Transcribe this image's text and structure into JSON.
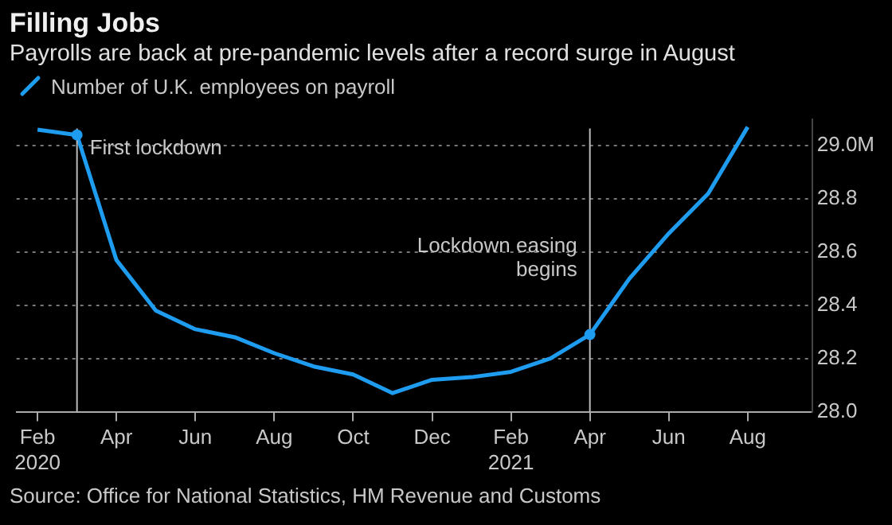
{
  "chart_data": {
    "type": "line",
    "title": "Filling Jobs",
    "subtitle": "Payrolls are back at pre-pandemic levels after a record surge in August",
    "x": [
      "2020-02",
      "2020-03",
      "2020-04",
      "2020-05",
      "2020-06",
      "2020-07",
      "2020-08",
      "2020-09",
      "2020-10",
      "2020-11",
      "2020-12",
      "2021-01",
      "2021-02",
      "2021-03",
      "2021-04",
      "2021-05",
      "2021-06",
      "2021-07",
      "2021-08"
    ],
    "series": [
      {
        "name": "Number of U.K. employees on payroll",
        "color": "#1e9cf0",
        "values": [
          29.06,
          29.04,
          28.57,
          28.38,
          28.31,
          28.28,
          28.22,
          28.17,
          28.14,
          28.07,
          28.12,
          28.13,
          28.15,
          28.2,
          28.29,
          28.5,
          28.67,
          28.82,
          29.07
        ]
      }
    ],
    "xlim": [
      "2020-01-15",
      "2021-09-20"
    ],
    "xticks": [
      {
        "value": "2020-02",
        "label": "Feb\n2020"
      },
      {
        "value": "2020-04",
        "label": "Apr"
      },
      {
        "value": "2020-06",
        "label": "Jun"
      },
      {
        "value": "2020-08",
        "label": "Aug"
      },
      {
        "value": "2020-10",
        "label": "Oct"
      },
      {
        "value": "2020-12",
        "label": "Dec"
      },
      {
        "value": "2021-02",
        "label": "Feb\n2021"
      },
      {
        "value": "2021-04",
        "label": "Apr"
      },
      {
        "value": "2021-06",
        "label": "Jun"
      },
      {
        "value": "2021-08",
        "label": "Aug"
      }
    ],
    "ylim": [
      28.0,
      29.1
    ],
    "yticks": [
      {
        "value": 28.0,
        "label": "28.0"
      },
      {
        "value": 28.2,
        "label": "28.2"
      },
      {
        "value": 28.4,
        "label": "28.4"
      },
      {
        "value": 28.6,
        "label": "28.6"
      },
      {
        "value": 28.8,
        "label": "28.8"
      },
      {
        "value": 29.0,
        "label": "29.0M"
      }
    ],
    "ref_lines": [
      {
        "axis": "x",
        "value": "2020-03",
        "label": "First lockdown",
        "color": "#bbbbbb"
      },
      {
        "axis": "x",
        "value": "2021-04",
        "label": "Lockdown easing\nbegins",
        "color": "#bbbbbb"
      }
    ],
    "annotations": [
      "Source: Office for National Statistics, HM Revenue and Customs"
    ],
    "grid": "y",
    "legend": "top left",
    "marker": "none",
    "line_style": "solid"
  }
}
